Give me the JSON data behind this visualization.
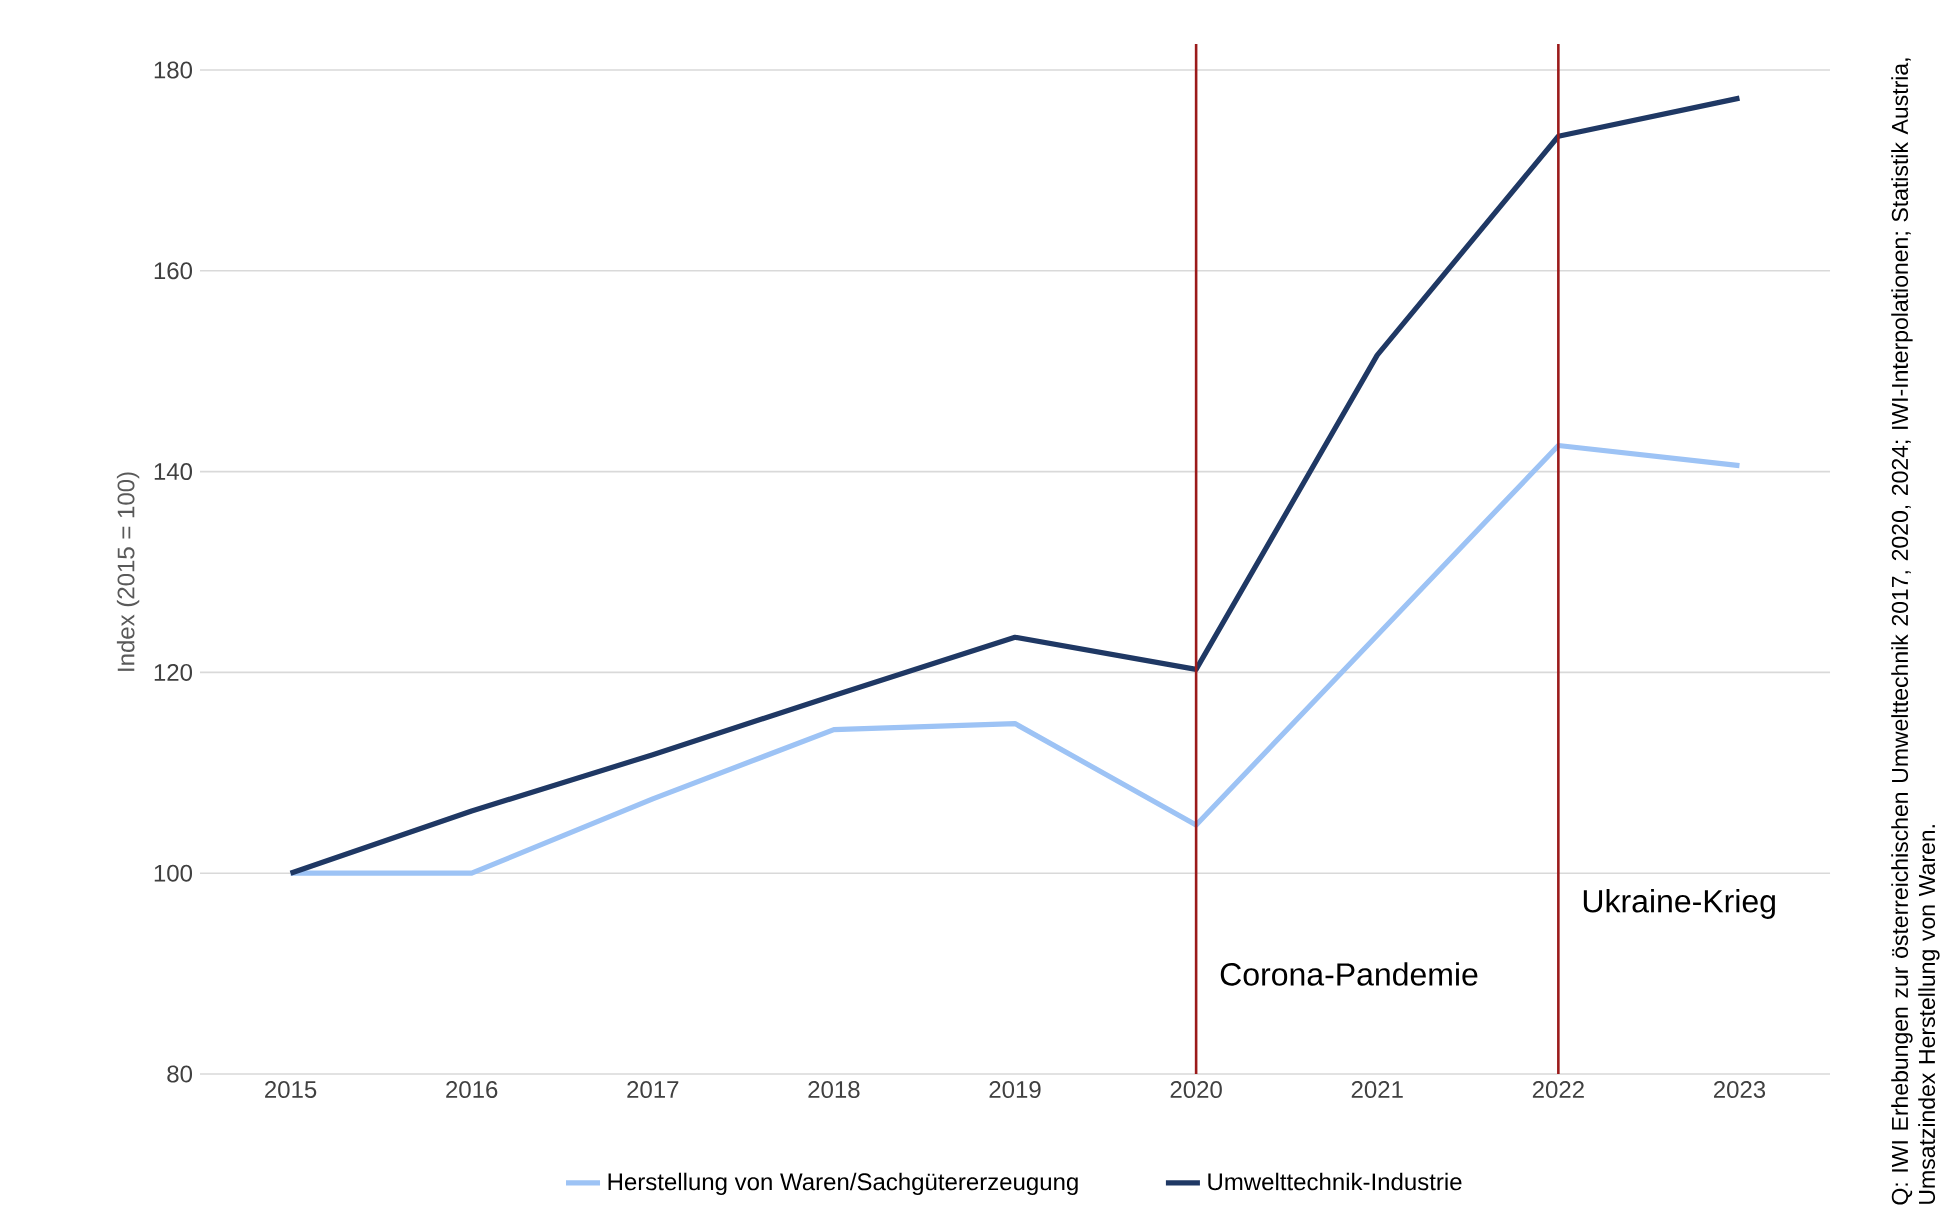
{
  "chart_data": {
    "type": "line",
    "ylabel": "Index (2015 = 100)",
    "x": [
      2015,
      2016,
      2017,
      2018,
      2019,
      2020,
      2021,
      2022,
      2023
    ],
    "xlim": [
      2014.5,
      2023.5
    ],
    "xticks": [
      2015,
      2016,
      2017,
      2018,
      2019,
      2020,
      2021,
      2022,
      2023
    ],
    "ylim": [
      80,
      180
    ],
    "yticks": [
      80,
      100,
      120,
      140,
      160,
      180
    ],
    "series": [
      {
        "name": "Herstellung von Waren/Sachgütererzeugung",
        "color": "#9dc3f5",
        "values": [
          100,
          100,
          107.4,
          114.3,
          114.9,
          104.8,
          123.7,
          142.6,
          140.6
        ]
      },
      {
        "name": "Umwelttechnik-Industrie",
        "color": "#1f3864",
        "values": [
          100,
          106.2,
          111.8,
          117.7,
          123.5,
          120.3,
          151.6,
          173.4,
          177.2
        ]
      }
    ],
    "ref_lines": [
      {
        "axis": "x",
        "value": 2020,
        "label": "Corona-Pandemie",
        "color": "#9b1b1b"
      },
      {
        "axis": "x",
        "value": 2022,
        "label": "Ukraine-Krieg",
        "color": "#9b1b1b"
      }
    ],
    "annotations": [
      "Q:  IWI Erhebungen zur österreichischen Umwelttechnik 2017, 2020, 2024; IWI-Interpolationen; Statistik Austria, Umsatzindex Herstellung von Waren."
    ],
    "grid": "y",
    "legend": "bottom",
    "marker": "none",
    "line_style": "solid"
  }
}
